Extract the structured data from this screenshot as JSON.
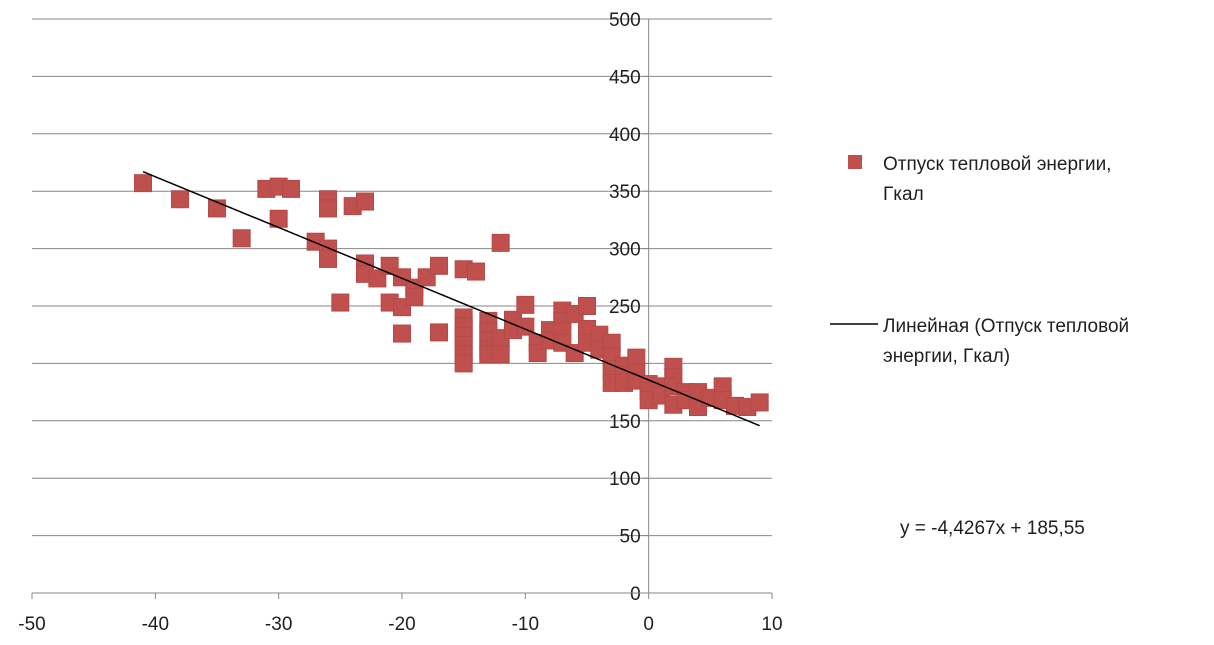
{
  "chart_data": {
    "type": "scatter",
    "title": "",
    "xlabel": "",
    "ylabel": "",
    "xlim": [
      -50,
      10
    ],
    "ylim": [
      0,
      500
    ],
    "x_ticks": [
      "-50",
      "-40",
      "-30",
      "-20",
      "-10",
      "0",
      "10"
    ],
    "y_ticks": [
      "0",
      "50",
      "100",
      "150",
      "200",
      "250",
      "300",
      "350",
      "400",
      "450",
      "500"
    ],
    "grid": "horizontal",
    "legend_position": "right",
    "marker_color": "#C0504D",
    "trendline_color": "#000000",
    "series": [
      {
        "name": "Отпуск тепловой энергии, Гкал",
        "points": [
          [
            -41,
            357
          ],
          [
            -38,
            343
          ],
          [
            -35,
            335
          ],
          [
            -33,
            309
          ],
          [
            -31,
            352
          ],
          [
            -30,
            354
          ],
          [
            -30,
            326
          ],
          [
            -29,
            352
          ],
          [
            -27,
            306
          ],
          [
            -26,
            343
          ],
          [
            -26,
            335
          ],
          [
            -26,
            300
          ],
          [
            -26,
            291
          ],
          [
            -25,
            253
          ],
          [
            -24,
            337
          ],
          [
            -23,
            341
          ],
          [
            -23,
            287
          ],
          [
            -23,
            278
          ],
          [
            -22,
            274
          ],
          [
            -21,
            285
          ],
          [
            -21,
            253
          ],
          [
            -20,
            275
          ],
          [
            -20,
            249
          ],
          [
            -20,
            226
          ],
          [
            -19,
            266
          ],
          [
            -19,
            258
          ],
          [
            -18,
            275
          ],
          [
            -17,
            285
          ],
          [
            -17,
            227
          ],
          [
            -15,
            282
          ],
          [
            -15,
            240
          ],
          [
            -15,
            232
          ],
          [
            -15,
            224
          ],
          [
            -15,
            216
          ],
          [
            -15,
            208
          ],
          [
            -15,
            200
          ],
          [
            -14,
            280
          ],
          [
            -13,
            237
          ],
          [
            -13,
            228
          ],
          [
            -13,
            220
          ],
          [
            -13,
            212
          ],
          [
            -13,
            208
          ],
          [
            -12,
            305
          ],
          [
            -12,
            222
          ],
          [
            -12,
            208
          ],
          [
            -11,
            238
          ],
          [
            -11,
            229
          ],
          [
            -10,
            251
          ],
          [
            -10,
            232
          ],
          [
            -9,
            218
          ],
          [
            -9,
            209
          ],
          [
            -8,
            229
          ],
          [
            -8,
            220
          ],
          [
            -7,
            246
          ],
          [
            -7,
            237
          ],
          [
            -7,
            228
          ],
          [
            -7,
            218
          ],
          [
            -6,
            243
          ],
          [
            -6,
            209
          ],
          [
            -5,
            250
          ],
          [
            -5,
            230
          ],
          [
            -5,
            218
          ],
          [
            -4,
            225
          ],
          [
            -4,
            212
          ],
          [
            -3,
            218
          ],
          [
            -3,
            206
          ],
          [
            -3,
            195
          ],
          [
            -3,
            183
          ],
          [
            -2,
            198
          ],
          [
            -2,
            190
          ],
          [
            -2,
            183
          ],
          [
            -1,
            205
          ],
          [
            -1,
            192
          ],
          [
            -1,
            185
          ],
          [
            0,
            182
          ],
          [
            0,
            176
          ],
          [
            0,
            168
          ],
          [
            1,
            180
          ],
          [
            1,
            172
          ],
          [
            2,
            197
          ],
          [
            2,
            188
          ],
          [
            2,
            180
          ],
          [
            2,
            164
          ],
          [
            3,
            175
          ],
          [
            3,
            168
          ],
          [
            4,
            175
          ],
          [
            4,
            162
          ],
          [
            5,
            170
          ],
          [
            6,
            180
          ],
          [
            6,
            168
          ],
          [
            7,
            163
          ],
          [
            8,
            162
          ],
          [
            9,
            166
          ]
        ]
      },
      {
        "name": "Линейная (Отпуск тепловой энергии, Гкал)",
        "kind": "linear-trendline",
        "x_range": [
          -41,
          9
        ],
        "slope": -4.4267,
        "intercept": 185.55
      }
    ],
    "legend": {
      "scatter_label": "Отпуск тепловой энергии, Гкал",
      "scatter_label_lines": [
        "Отпуск тепловой энергии,",
        "Гкал"
      ],
      "trend_label": "Линейная (Отпуск тепловой энергии, Гкал)",
      "trend_label_lines": [
        "Линейная (Отпуск тепловой",
        "энергии, Гкал)"
      ]
    },
    "equation": "y = -4,4267x + 185,55"
  }
}
